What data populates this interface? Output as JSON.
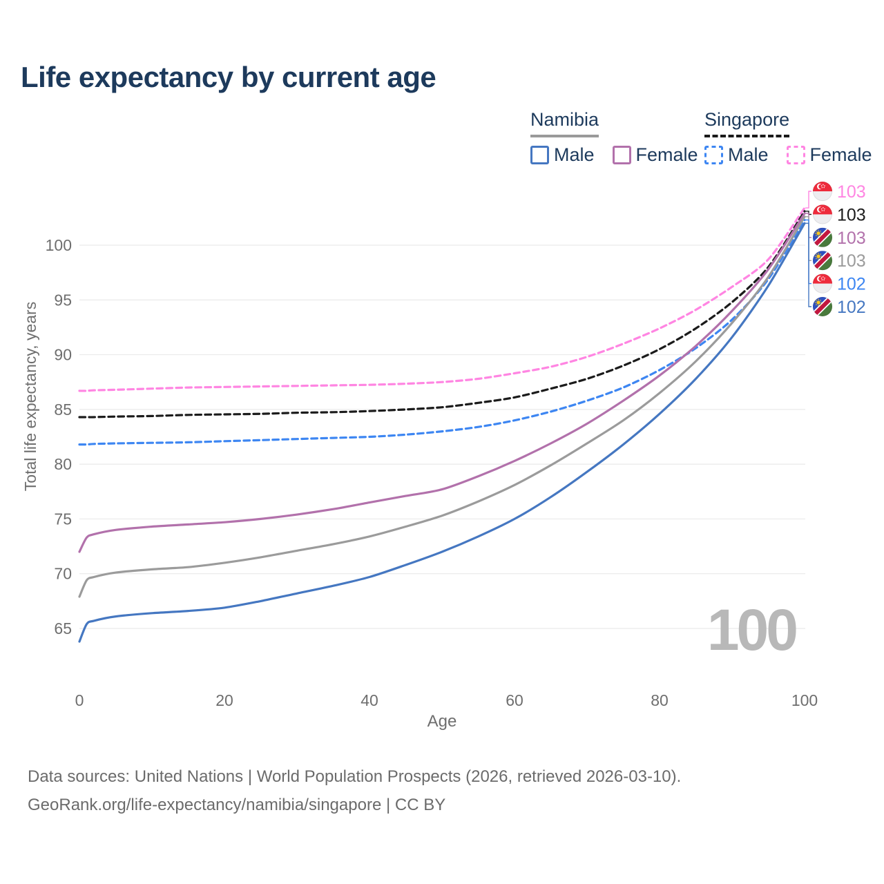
{
  "title": "Life expectancy by current age",
  "colors": {
    "title_text": "#1d3a5c",
    "axis_text": "#6e6e6e",
    "gridline": "#eaeaea",
    "watermark": "#b8b8b8",
    "footer_text": "#6b6b6b"
  },
  "legend": {
    "groups": [
      {
        "country": "Namibia",
        "underline": "solid",
        "underline_color": "#9a9a9a",
        "dashed": false,
        "male_label": "Male",
        "male_color": "#4577c1",
        "female_label": "Female",
        "female_color": "#b271ab"
      },
      {
        "country": "Singapore",
        "underline": "dashed",
        "underline_color": "#1a1a1a",
        "dashed": true,
        "male_label": "Male",
        "male_color": "#3d86f2",
        "female_label": "Female",
        "female_color": "#ff85e2"
      }
    ]
  },
  "chart_data": {
    "type": "line",
    "title": "Life expectancy by current age",
    "xlabel": "Age",
    "ylabel": "Total life expectancy, years",
    "xlim": [
      0,
      100
    ],
    "ylim": [
      63,
      104
    ],
    "x_ticks": [
      0,
      20,
      40,
      60,
      80,
      100
    ],
    "y_ticks": [
      65,
      70,
      75,
      80,
      85,
      90,
      95,
      100
    ],
    "grid": true,
    "legend_position": "top-right",
    "watermark": "100",
    "x": [
      0,
      1,
      2,
      5,
      10,
      15,
      20,
      25,
      30,
      35,
      40,
      45,
      50,
      55,
      60,
      65,
      70,
      75,
      80,
      85,
      90,
      95,
      100
    ],
    "series": [
      {
        "name": "Singapore Female",
        "country": "singapore",
        "sex": "female",
        "color": "#ff85e2",
        "dash": true,
        "end_label": "103",
        "values": [
          86.7,
          86.7,
          86.75,
          86.8,
          86.9,
          87.0,
          87.05,
          87.1,
          87.15,
          87.2,
          87.25,
          87.35,
          87.5,
          87.8,
          88.3,
          88.9,
          89.8,
          91.0,
          92.4,
          94.1,
          96.2,
          98.7,
          103.4
        ]
      },
      {
        "name": "Singapore Total",
        "country": "singapore",
        "sex": "both",
        "color": "#1b1b1b",
        "dash": true,
        "end_label": "103",
        "values": [
          84.3,
          84.3,
          84.3,
          84.35,
          84.4,
          84.5,
          84.55,
          84.6,
          84.7,
          84.75,
          84.85,
          85.0,
          85.2,
          85.6,
          86.1,
          86.9,
          87.8,
          89.0,
          90.5,
          92.4,
          94.8,
          98.0,
          103.1
        ]
      },
      {
        "name": "Singapore Male",
        "country": "singapore",
        "sex": "male",
        "color": "#3d86f2",
        "dash": true,
        "end_label": "102",
        "values": [
          81.8,
          81.8,
          81.85,
          81.9,
          81.95,
          82.0,
          82.1,
          82.2,
          82.3,
          82.4,
          82.5,
          82.7,
          83.0,
          83.4,
          84.0,
          84.8,
          85.8,
          87.0,
          88.6,
          90.6,
          93.2,
          96.9,
          102.3
        ]
      },
      {
        "name": "Namibia Female",
        "country": "namibia",
        "sex": "female",
        "color": "#b271ab",
        "dash": false,
        "end_label": "103",
        "values": [
          72.0,
          73.3,
          73.6,
          74.0,
          74.3,
          74.5,
          74.7,
          75.0,
          75.4,
          75.9,
          76.5,
          77.1,
          77.7,
          78.9,
          80.3,
          81.9,
          83.7,
          85.8,
          88.1,
          90.8,
          94.0,
          97.8,
          102.9
        ]
      },
      {
        "name": "Namibia Total",
        "country": "namibia",
        "sex": "both",
        "color": "#9b9b9b",
        "dash": false,
        "end_label": "103",
        "values": [
          67.9,
          69.4,
          69.7,
          70.1,
          70.4,
          70.6,
          71.0,
          71.5,
          72.1,
          72.7,
          73.4,
          74.3,
          75.3,
          76.6,
          78.1,
          79.9,
          81.9,
          84.0,
          86.5,
          89.4,
          92.9,
          97.1,
          102.6
        ]
      },
      {
        "name": "Namibia Male",
        "country": "namibia",
        "sex": "male",
        "color": "#4577c1",
        "dash": false,
        "end_label": "102",
        "values": [
          63.8,
          65.4,
          65.7,
          66.1,
          66.4,
          66.6,
          66.9,
          67.5,
          68.2,
          68.9,
          69.7,
          70.8,
          72.0,
          73.4,
          75.0,
          77.0,
          79.3,
          81.8,
          84.6,
          87.8,
          91.6,
          96.3,
          102.0
        ]
      }
    ]
  },
  "end_labels": [
    {
      "value": "103",
      "flag": "singapore",
      "series": "Singapore Female"
    },
    {
      "value": "103",
      "flag": "singapore",
      "series": "Singapore Total"
    },
    {
      "value": "103",
      "flag": "namibia",
      "series": "Namibia Female"
    },
    {
      "value": "103",
      "flag": "namibia",
      "series": "Namibia Total"
    },
    {
      "value": "102",
      "flag": "singapore",
      "series": "Singapore Male"
    },
    {
      "value": "102",
      "flag": "namibia",
      "series": "Namibia Male"
    }
  ],
  "footer": {
    "line1": "Data sources: United Nations | World Population Prospects (2026, retrieved 2026-03-10).",
    "line2": "GeoRank.org/life-expectancy/namibia/singapore | CC BY"
  }
}
